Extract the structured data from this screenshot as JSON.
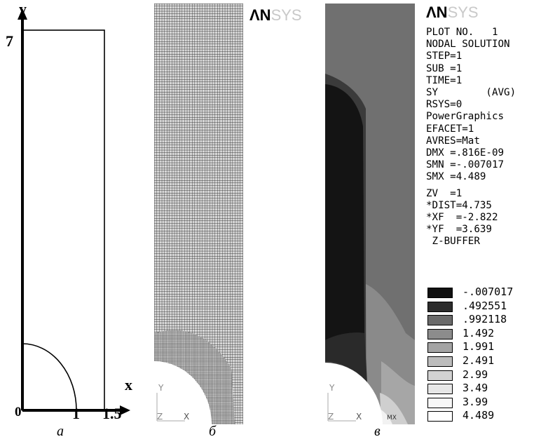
{
  "panel_a": {
    "label": "а",
    "axis_y": "y",
    "axis_x": "x",
    "tick_y_top": "7",
    "tick_origin": "0",
    "tick_x_1": "1",
    "tick_x_15": "1.5"
  },
  "panel_b": {
    "label": "б",
    "logo_strong": "ΛN",
    "logo_faint": "SYS",
    "triad_y": "Y",
    "triad_z": "Z",
    "triad_x": "X"
  },
  "panel_c": {
    "label": "в",
    "logo_strong": "ΛN",
    "logo_faint": "SYS",
    "triad_y": "Y",
    "triad_z": "Z",
    "triad_x": "X",
    "mx_label": "MX",
    "info_lines": [
      "PLOT NO.   1",
      "NODAL SOLUTION",
      "STEP=1",
      "SUB =1",
      "TIME=1",
      "SY        (AVG)",
      "RSYS=0",
      "PowerGraphics",
      "EFACET=1",
      "AVRES=Mat",
      "DMX =.816E-09",
      "SMN =-.007017",
      "SMX =4.489",
      "",
      "ZV  =1",
      "*DIST=4.735",
      "*XF  =-2.822",
      "*YF  =3.639",
      " Z-BUFFER"
    ],
    "legend": [
      {
        "value": "-.007017",
        "color": "#111111"
      },
      {
        "value": ".492551",
        "color": "#2c2c2c"
      },
      {
        "value": ".992118",
        "color": "#6a6a6a"
      },
      {
        "value": "1.492",
        "color": "#8c8c8c"
      },
      {
        "value": "1.991",
        "color": "#a4a4a4"
      },
      {
        "value": "2.491",
        "color": "#bcbcbc"
      },
      {
        "value": "2.99",
        "color": "#d2d2d2"
      },
      {
        "value": "3.49",
        "color": "#e6e6e6"
      },
      {
        "value": "3.99",
        "color": "#f7f7f7"
      },
      {
        "value": "4.489",
        "color": "#ffffff"
      }
    ]
  }
}
